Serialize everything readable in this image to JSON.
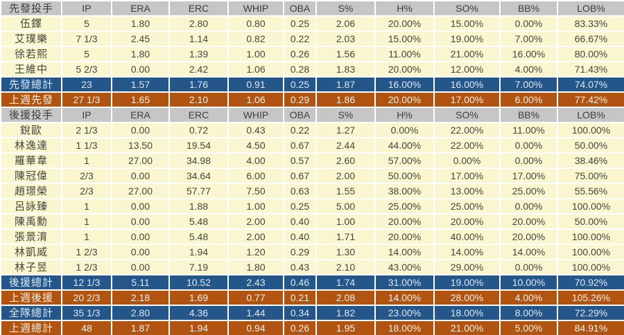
{
  "colors": {
    "header_row_bg": "#c6c6c6",
    "header_row_text": "#3d3d3d",
    "player_row_bg": "#faf7d0",
    "player_row_text": "#45453a",
    "total_row_blue_bg": "#255689",
    "total_row_blue_text": "#d9e9f7",
    "lastweek_row_brown_bg": "#b15412",
    "lastweek_row_brown_text": "#f7efe1",
    "grid_line": "#ffffff"
  },
  "chart_data": {
    "type": "table",
    "columns": [
      "IP",
      "ERA",
      "ERC",
      "WHIP",
      "OBA",
      "S%",
      "H%",
      "SO%",
      "BB%",
      "LOB%"
    ],
    "rows": [
      {
        "label": "先發投手",
        "type": "header",
        "values": []
      },
      {
        "label": "伍鐸",
        "type": "player",
        "values": [
          "5",
          "1.80",
          "2.80",
          "0.80",
          "0.25",
          "2.06",
          "20.00%",
          "15.00%",
          "0.00%",
          "83.33%"
        ]
      },
      {
        "label": "艾璞樂",
        "type": "player",
        "values": [
          "7 1/3",
          "2.45",
          "1.14",
          "0.82",
          "0.22",
          "2.03",
          "15.00%",
          "19.00%",
          "7.00%",
          "66.67%"
        ]
      },
      {
        "label": "徐若熙",
        "type": "player",
        "values": [
          "5",
          "1.80",
          "1.39",
          "1.00",
          "0.26",
          "1.56",
          "11.00%",
          "21.00%",
          "16.00%",
          "80.00%"
        ]
      },
      {
        "label": "王維中",
        "type": "player",
        "values": [
          "5 2/3",
          "0.00",
          "2.42",
          "1.06",
          "0.28",
          "1.83",
          "20.00%",
          "12.00%",
          "4.00%",
          "71.43%"
        ]
      },
      {
        "label": "先發總計",
        "type": "total-blue",
        "values": [
          "23",
          "1.57",
          "1.76",
          "0.91",
          "0.25",
          "1.87",
          "16.00%",
          "16.00%",
          "7.00%",
          "74.07%"
        ]
      },
      {
        "label": "上週先發",
        "type": "total-brown",
        "values": [
          "27 1/3",
          "1.65",
          "2.10",
          "1.06",
          "0.29",
          "1.86",
          "20.00%",
          "17.00%",
          "6.00%",
          "77.42%"
        ]
      },
      {
        "label": "後援投手",
        "type": "header",
        "values": []
      },
      {
        "label": "銳歐",
        "type": "player",
        "values": [
          "2 1/3",
          "0.00",
          "0.72",
          "0.43",
          "0.22",
          "1.27",
          "0.00%",
          "22.00%",
          "11.00%",
          "100.00%"
        ]
      },
      {
        "label": "林逸達",
        "type": "player",
        "values": [
          "1 1/3",
          "13.50",
          "19.54",
          "4.50",
          "0.67",
          "2.44",
          "44.00%",
          "22.00%",
          "0.00%",
          "50.00%"
        ]
      },
      {
        "label": "羅華韋",
        "type": "player",
        "values": [
          "1",
          "27.00",
          "34.98",
          "4.00",
          "0.57",
          "2.60",
          "57.00%",
          "0.00%",
          "0.00%",
          "38.46%"
        ]
      },
      {
        "label": "陳冠偉",
        "type": "player",
        "values": [
          "2/3",
          "0.00",
          "34.64",
          "6.00",
          "0.67",
          "2.00",
          "50.00%",
          "17.00%",
          "17.00%",
          "75.00%"
        ]
      },
      {
        "label": "趙璟榮",
        "type": "player",
        "values": [
          "2/3",
          "27.00",
          "57.77",
          "7.50",
          "0.63",
          "1.55",
          "38.00%",
          "13.00%",
          "25.00%",
          "55.56%"
        ]
      },
      {
        "label": "呂詠臻",
        "type": "player",
        "values": [
          "1",
          "0.00",
          "1.88",
          "1.00",
          "0.25",
          "5.00",
          "25.00%",
          "25.00%",
          "0.00%",
          "100.00%"
        ]
      },
      {
        "label": "陳禹勳",
        "type": "player",
        "values": [
          "1",
          "0.00",
          "5.48",
          "2.00",
          "0.40",
          "1.00",
          "20.00%",
          "20.00%",
          "20.00%",
          "50.00%"
        ]
      },
      {
        "label": "張景淯",
        "type": "player",
        "values": [
          "1",
          "0.00",
          "5.48",
          "2.00",
          "0.40",
          "1.71",
          "20.00%",
          "40.00%",
          "20.00%",
          "100.00%"
        ]
      },
      {
        "label": "林凱威",
        "type": "player",
        "values": [
          "1 2/3",
          "0.00",
          "1.94",
          "1.20",
          "0.29",
          "1.30",
          "14.00%",
          "14.00%",
          "14.00%",
          "100.00%"
        ]
      },
      {
        "label": "林子昱",
        "type": "player",
        "values": [
          "1 2/3",
          "0.00",
          "7.19",
          "1.80",
          "0.43",
          "2.10",
          "43.00%",
          "29.00%",
          "0.00%",
          "100.00%"
        ]
      },
      {
        "label": "後援總計",
        "type": "total-blue",
        "values": [
          "12 1/3",
          "5.11",
          "10.52",
          "2.43",
          "0.46",
          "1.74",
          "31.00%",
          "19.00%",
          "10.00%",
          "70.92%"
        ]
      },
      {
        "label": "上週後援",
        "type": "total-brown",
        "values": [
          "20 2/3",
          "2.18",
          "1.69",
          "0.77",
          "0.21",
          "2.08",
          "14.00%",
          "28.00%",
          "4.00%",
          "105.26%"
        ]
      },
      {
        "label": "全隊總計",
        "type": "total-blue",
        "values": [
          "35 1/3",
          "2.80",
          "4.36",
          "1.44",
          "0.34",
          "1.82",
          "23.00%",
          "18.00%",
          "8.00%",
          "72.29%"
        ]
      },
      {
        "label": "上週總計",
        "type": "total-brown",
        "values": [
          "48",
          "1.87",
          "1.94",
          "0.94",
          "0.26",
          "1.95",
          "18.00%",
          "21.00%",
          "5.00%",
          "84.91%"
        ]
      }
    ]
  }
}
